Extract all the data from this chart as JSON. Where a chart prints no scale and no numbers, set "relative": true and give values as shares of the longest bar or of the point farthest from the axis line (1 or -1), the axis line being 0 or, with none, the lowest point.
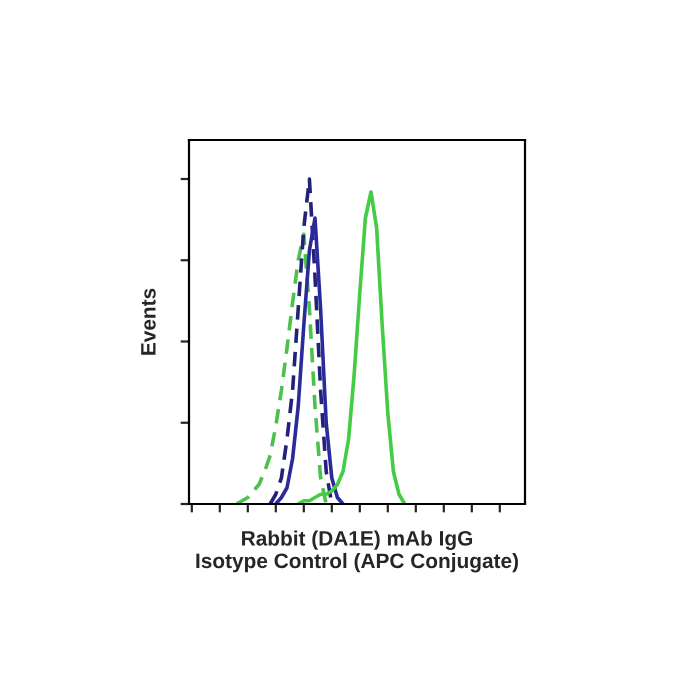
{
  "chart_data": {
    "type": "line",
    "relative": true,
    "xlabel": "Rabbit (DA1E) mAb IgG\nIsotype Control (APC Conjugate)",
    "ylabel": "Events",
    "tick_labels": false,
    "legend": false,
    "grid": false,
    "categories": [
      null,
      null,
      null,
      null,
      null,
      null,
      null,
      null,
      null,
      null,
      null,
      null,
      null,
      null,
      null,
      null,
      null,
      null,
      null,
      null,
      null,
      null,
      null,
      null,
      null,
      null,
      null,
      null,
      null,
      null,
      null,
      null,
      null,
      null,
      null,
      null,
      null,
      null,
      null,
      null,
      null,
      null,
      null,
      null,
      null,
      null,
      null,
      null,
      null,
      null,
      null,
      null,
      null,
      null,
      null,
      null,
      null,
      null,
      null,
      null
    ],
    "series": [
      {
        "color": "#4cc24c",
        "line_style": "dashed",
        "values": [
          null,
          null,
          null,
          null,
          null,
          null,
          null,
          null,
          0,
          0.01,
          0.02,
          0.04,
          0.06,
          0.1,
          0.15,
          0.24,
          0.35,
          0.48,
          0.62,
          0.75,
          0.83,
          0.6,
          0.3,
          0.08,
          0,
          null,
          null,
          null,
          null,
          null,
          null,
          null,
          null,
          null,
          null,
          null,
          null,
          null,
          null,
          null,
          null,
          null,
          null,
          null,
          null,
          null,
          null,
          null,
          null,
          null,
          null,
          null,
          null,
          null,
          null,
          null,
          null,
          null,
          null,
          null
        ]
      },
      {
        "color": "#22227a",
        "line_style": "dashed",
        "values": [
          null,
          null,
          null,
          null,
          null,
          null,
          null,
          null,
          null,
          null,
          null,
          null,
          null,
          null,
          0,
          0.03,
          0.08,
          0.2,
          0.35,
          0.6,
          0.85,
          1.0,
          0.7,
          0.35,
          0.1,
          0,
          null,
          null,
          null,
          null,
          null,
          null,
          null,
          null,
          null,
          null,
          null,
          null,
          null,
          null,
          null,
          null,
          null,
          null,
          null,
          null,
          null,
          null,
          null,
          null,
          null,
          null,
          null,
          null,
          null,
          null,
          null,
          null,
          null,
          null
        ]
      },
      {
        "color": "#2a2a9a",
        "line_style": "solid",
        "values": [
          null,
          null,
          null,
          null,
          null,
          null,
          null,
          null,
          null,
          null,
          null,
          null,
          null,
          null,
          null,
          0,
          0.02,
          0.05,
          0.14,
          0.3,
          0.55,
          0.78,
          0.88,
          0.6,
          0.25,
          0.08,
          0.02,
          0,
          null,
          null,
          null,
          null,
          null,
          null,
          null,
          null,
          null,
          null,
          null,
          null,
          null,
          null,
          null,
          null,
          null,
          null,
          null,
          null,
          null,
          null,
          null,
          null,
          null,
          null,
          null,
          null,
          null,
          null,
          null,
          null
        ]
      },
      {
        "color": "#44cc44",
        "line_style": "solid",
        "values": [
          null,
          null,
          null,
          null,
          null,
          null,
          null,
          null,
          null,
          null,
          null,
          null,
          null,
          null,
          null,
          null,
          null,
          null,
          null,
          0,
          0.01,
          0.01,
          0.02,
          0.03,
          0.03,
          0.04,
          0.06,
          0.1,
          0.2,
          0.4,
          0.65,
          0.88,
          0.96,
          0.85,
          0.55,
          0.28,
          0.1,
          0.03,
          0,
          null,
          null,
          null,
          null,
          null,
          null,
          null,
          null,
          null,
          null,
          null,
          null,
          null,
          null,
          null,
          null,
          null,
          null,
          null,
          null,
          null
        ]
      }
    ]
  }
}
